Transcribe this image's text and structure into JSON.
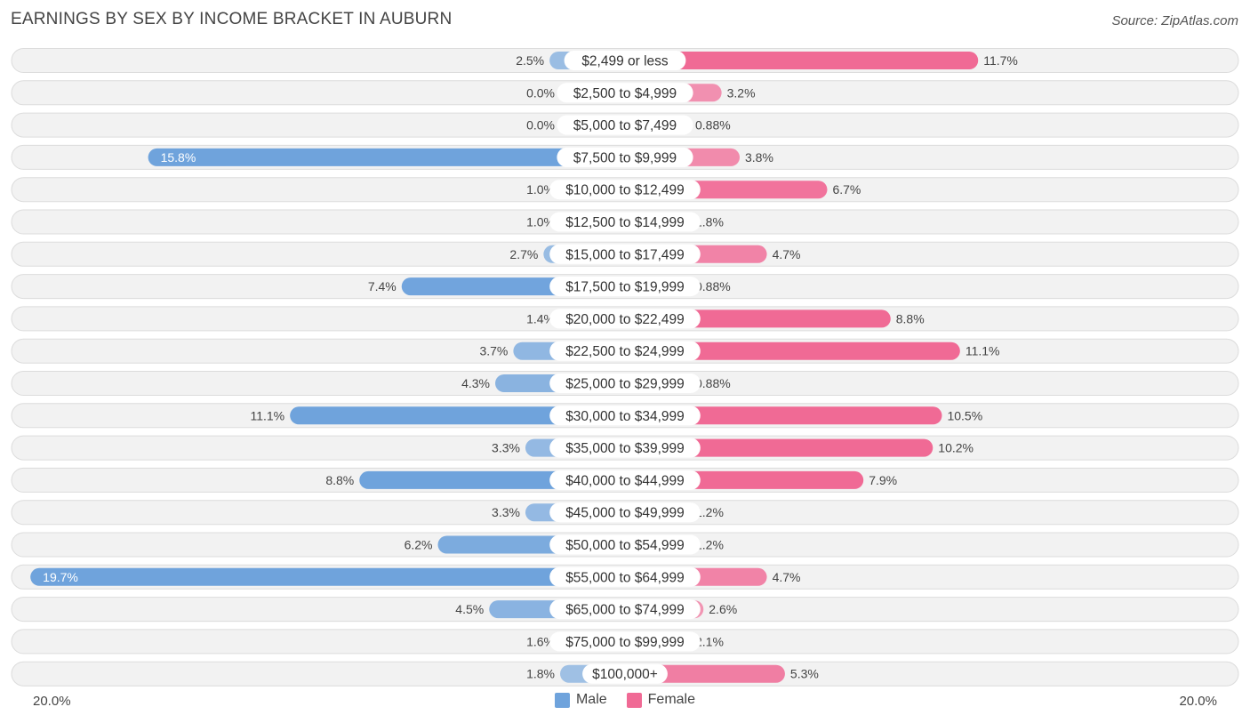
{
  "chart_data": {
    "type": "bar",
    "orientation": "horizontal-diverging",
    "title": "EARNINGS BY SEX BY INCOME BRACKET IN AUBURN",
    "source": "Source: ZipAtlas.com",
    "categories": [
      "$2,499 or less",
      "$2,500 to $4,999",
      "$5,000 to $7,499",
      "$7,500 to $9,999",
      "$10,000 to $12,499",
      "$12,500 to $14,999",
      "$15,000 to $17,499",
      "$17,500 to $19,999",
      "$20,000 to $22,499",
      "$22,500 to $24,999",
      "$25,000 to $29,999",
      "$30,000 to $34,999",
      "$35,000 to $39,999",
      "$40,000 to $44,999",
      "$45,000 to $49,999",
      "$50,000 to $54,999",
      "$55,000 to $64,999",
      "$65,000 to $74,999",
      "$75,000 to $99,999",
      "$100,000+"
    ],
    "series": [
      {
        "name": "Male",
        "color": "#6fa3dc",
        "values": [
          2.5,
          0.0,
          0.0,
          15.8,
          1.0,
          1.0,
          2.7,
          7.4,
          1.4,
          3.7,
          4.3,
          11.1,
          3.3,
          8.8,
          3.3,
          6.2,
          19.7,
          4.5,
          1.6,
          1.8
        ],
        "labels": [
          "2.5%",
          "0.0%",
          "0.0%",
          "15.8%",
          "1.0%",
          "1.0%",
          "2.7%",
          "7.4%",
          "1.4%",
          "3.7%",
          "4.3%",
          "11.1%",
          "3.3%",
          "8.8%",
          "3.3%",
          "6.2%",
          "19.7%",
          "4.5%",
          "1.6%",
          "1.8%"
        ]
      },
      {
        "name": "Female",
        "color": "#f06a95",
        "values": [
          11.7,
          3.2,
          0.88,
          3.8,
          6.7,
          1.8,
          4.7,
          0.88,
          8.8,
          11.1,
          0.88,
          10.5,
          10.2,
          7.9,
          1.2,
          1.2,
          4.7,
          2.6,
          2.1,
          5.3
        ],
        "labels": [
          "11.7%",
          "3.2%",
          "0.88%",
          "3.8%",
          "6.7%",
          "1.8%",
          "4.7%",
          "0.88%",
          "8.8%",
          "11.1%",
          "0.88%",
          "10.5%",
          "10.2%",
          "7.9%",
          "1.2%",
          "1.2%",
          "4.7%",
          "2.6%",
          "2.1%",
          "5.3%"
        ]
      }
    ],
    "xlim": [
      -20,
      20
    ],
    "axis_left_label": "20.0%",
    "axis_right_label": "20.0%",
    "legend": [
      "Male",
      "Female"
    ],
    "legend_position": "bottom-center"
  }
}
